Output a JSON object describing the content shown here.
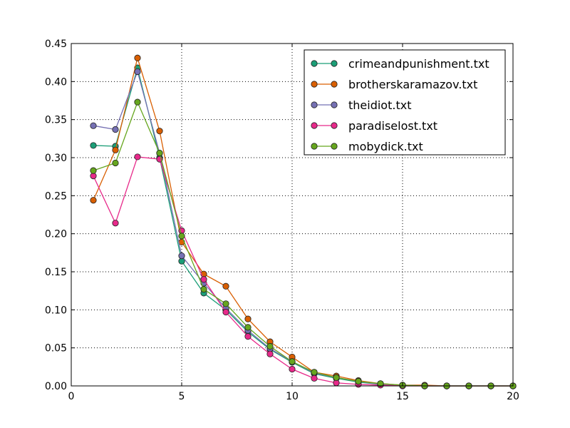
{
  "chart_data": {
    "type": "line",
    "title": "",
    "xlabel": "",
    "ylabel": "",
    "xlim": [
      0,
      20
    ],
    "ylim": [
      0,
      0.45
    ],
    "xticks": [
      0,
      5,
      10,
      15,
      20
    ],
    "yticks": [
      0.0,
      0.05,
      0.1,
      0.15,
      0.2,
      0.25,
      0.3,
      0.35,
      0.4,
      0.45
    ],
    "xtick_labels": [
      "0",
      "5",
      "10",
      "15",
      "20"
    ],
    "ytick_labels": [
      "0.00",
      "0.05",
      "0.10",
      "0.15",
      "0.20",
      "0.25",
      "0.30",
      "0.35",
      "0.40",
      "0.45"
    ],
    "grid": true,
    "legend_position": "top-right",
    "x": [
      1,
      2,
      3,
      4,
      5,
      6,
      7,
      8,
      9,
      10,
      11,
      12,
      13,
      14,
      15,
      16,
      17,
      18,
      19,
      20
    ],
    "series": [
      {
        "name": "crimeandpunishment.txt",
        "color": "#1b9e77",
        "values": [
          0.316,
          0.315,
          0.418,
          0.3,
          0.164,
          0.122,
          0.1,
          0.071,
          0.048,
          0.031,
          0.016,
          0.01,
          0.005,
          0.002,
          0.001,
          0.0,
          0.0,
          0.0,
          0.0,
          0.0
        ]
      },
      {
        "name": "brotherskaramazov.txt",
        "color": "#d95f02",
        "values": [
          0.244,
          0.31,
          0.431,
          0.335,
          0.189,
          0.147,
          0.131,
          0.088,
          0.058,
          0.038,
          0.018,
          0.013,
          0.007,
          0.003,
          0.001,
          0.001,
          0.0,
          0.0,
          0.0,
          0.0
        ]
      },
      {
        "name": "theidiot.txt",
        "color": "#7570b3",
        "values": [
          0.342,
          0.337,
          0.413,
          0.306,
          0.171,
          0.135,
          0.102,
          0.073,
          0.049,
          0.032,
          0.017,
          0.011,
          0.006,
          0.002,
          0.001,
          0.0,
          0.0,
          0.0,
          0.0,
          0.0
        ]
      },
      {
        "name": "paradiselost.txt",
        "color": "#e7298a",
        "values": [
          0.276,
          0.214,
          0.301,
          0.298,
          0.204,
          0.14,
          0.097,
          0.065,
          0.042,
          0.022,
          0.01,
          0.004,
          0.002,
          0.001,
          0.0,
          0.0,
          0.0,
          0.0,
          0.0,
          0.0
        ]
      },
      {
        "name": "mobydick.txt",
        "color": "#66a61e",
        "values": [
          0.283,
          0.293,
          0.373,
          0.306,
          0.197,
          0.127,
          0.108,
          0.077,
          0.052,
          0.032,
          0.018,
          0.011,
          0.006,
          0.003,
          0.001,
          0.0,
          0.0,
          0.0,
          0.0,
          0.0
        ]
      }
    ]
  }
}
